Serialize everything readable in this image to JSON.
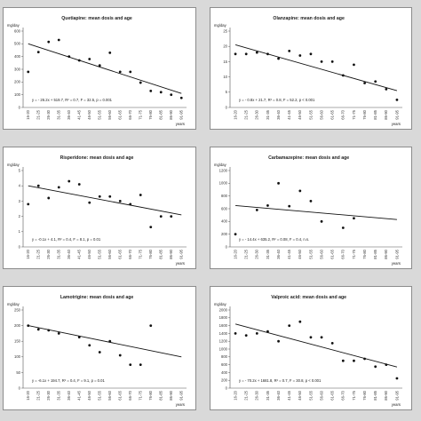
{
  "chart_data": [
    {
      "type": "scatter",
      "title": "Quetiapine: mean dosis and age",
      "ylabel": "mg/day",
      "xlabel": "years",
      "categories": [
        "16-20",
        "21-25",
        "26-30",
        "31-35",
        "36-40",
        "41-45",
        "46-50",
        "51-55",
        "56-60",
        "61-65",
        "66-70",
        "71-75",
        "76-80",
        "81-85",
        "86-90",
        "91-95"
      ],
      "ylim": [
        0,
        600
      ],
      "yticks": [
        "0",
        "100",
        "200",
        "300",
        "400",
        "500",
        "600"
      ],
      "grid": false,
      "series": [
        {
          "values": [
            280,
            435,
            515,
            530,
            400,
            370,
            380,
            330,
            430,
            280,
            280,
            195,
            130,
            120,
            100,
            75
          ]
        }
      ],
      "trend": {
        "type": "linear",
        "start": 500,
        "end": 110
      },
      "annotation": "y = - 26.2x + 519.7, R² = 0.7, F = 32.5, p = 0.001"
    },
    {
      "type": "scatter",
      "title": "Olanzapine: mean dosis and age",
      "ylabel": "mg/day",
      "xlabel": "years",
      "categories": [
        "16-20",
        "21-25",
        "26-30",
        "31-35",
        "36-40",
        "41-45",
        "46-50",
        "51-55",
        "56-60",
        "61-65",
        "66-70",
        "71-75",
        "76-80",
        "81-85",
        "86-90",
        "91-95"
      ],
      "ylim": [
        0,
        25
      ],
      "yticks": [
        "0",
        "5",
        "10",
        "15",
        "20",
        "25"
      ],
      "grid": false,
      "series": [
        {
          "values": [
            17.5,
            17.5,
            18,
            17.5,
            16,
            18.5,
            17,
            17.5,
            15,
            15,
            10.5,
            14,
            8,
            8.5,
            6,
            2.5
          ]
        }
      ],
      "trend": {
        "type": "linear",
        "start": 20.5,
        "end": 5.5
      },
      "annotation": "y = - 0.8x + 21.7, R² = 0.8, F = 52.2, p < 0.001"
    },
    {
      "type": "scatter",
      "title": "Risperidone: mean dosis and age",
      "ylabel": "mg/day",
      "xlabel": "years",
      "categories": [
        "16-20",
        "21-25",
        "26-30",
        "31-35",
        "36-40",
        "41-45",
        "46-50",
        "51-55",
        "56-60",
        "61-65",
        "66-70",
        "71-75",
        "76-80",
        "81-85",
        "86-90",
        "91-95"
      ],
      "ylim": [
        0,
        5
      ],
      "yticks": [
        "0",
        "1",
        "2",
        "3",
        "4",
        "5"
      ],
      "grid": false,
      "series": [
        {
          "values": [
            2.8,
            4,
            3.2,
            3.9,
            4.3,
            4.1,
            2.9,
            3.3,
            3.3,
            3,
            2.8,
            3.4,
            1.3,
            2,
            2
          ]
        }
      ],
      "trend": {
        "type": "linear",
        "start": 4,
        "end": 2.1
      },
      "annotation": "y = -0.1x + 4.1, R² = 0.4, F = 8.1, p = 0.01"
    },
    {
      "type": "scatter",
      "title": "Carbamazepine: mean dosis and age",
      "ylabel": "mg/day",
      "xlabel": "years",
      "categories": [
        "16-20",
        "21-25",
        "26-30",
        "31-35",
        "36-40",
        "41-45",
        "46-50",
        "51-55",
        "56-60",
        "61-65",
        "66-70",
        "71-75",
        "76-80",
        "81-85",
        "86-90",
        "91-95"
      ],
      "ylim": [
        0,
        1200
      ],
      "yticks": [
        "0",
        "200",
        "400",
        "600",
        "800",
        "1000",
        "1200"
      ],
      "grid": false,
      "series": [
        {
          "values": [
            200,
            null,
            580,
            650,
            1000,
            640,
            880,
            720,
            400,
            null,
            300,
            450
          ]
        }
      ],
      "trend": {
        "type": "linear",
        "start": 650,
        "end": 430
      },
      "annotation": "y = - 14.4x + 635.2, R² = 0.08, F = 0.4, n.s."
    },
    {
      "type": "scatter",
      "title": "Lamotrigine: mean dosis and age",
      "ylabel": "mg/day",
      "xlabel": "years",
      "categories": [
        "16-20",
        "21-25",
        "26-30",
        "31-35",
        "36-40",
        "41-45",
        "46-50",
        "51-55",
        "56-60",
        "61-65",
        "66-70",
        "71-75",
        "76-80",
        "81-85",
        "86-90",
        "91-95"
      ],
      "ylim": [
        0,
        250
      ],
      "yticks": [
        "0",
        "50",
        "100",
        "150",
        "200",
        "250"
      ],
      "grid": false,
      "series": [
        {
          "values": [
            200,
            188,
            185,
            175,
            null,
            163,
            137,
            115,
            150,
            105,
            75,
            75,
            200
          ]
        }
      ],
      "trend": {
        "type": "linear",
        "start": 200,
        "end": 100
      },
      "annotation": "y = -6.1x + 194.7, R² = 0.4, F = 9.1, p = 0.01"
    },
    {
      "type": "scatter",
      "title": "Valproic acid: mean dosis and age",
      "ylabel": "mg/day",
      "xlabel": "years",
      "categories": [
        "16-20",
        "21-25",
        "26-30",
        "31-35",
        "36-40",
        "41-45",
        "46-50",
        "51-55",
        "56-60",
        "61-65",
        "66-70",
        "71-75",
        "76-80",
        "81-85",
        "86-90",
        "91-95"
      ],
      "ylim": [
        0,
        2000
      ],
      "yticks": [
        "0",
        "200",
        "400",
        "600",
        "800",
        "1000",
        "1200",
        "1400",
        "1600",
        "1800",
        "2000"
      ],
      "grid": false,
      "series": [
        {
          "values": [
            1400,
            1350,
            1400,
            1450,
            1200,
            1600,
            1700,
            1300,
            1300,
            1150,
            700,
            700,
            750,
            550,
            600,
            250
          ]
        }
      ],
      "trend": {
        "type": "linear",
        "start": 1640,
        "end": 540
      },
      "annotation": "y = - 70.2x + 1681.8, R² = 0.7, F = 30.8, p < 0.001"
    }
  ]
}
